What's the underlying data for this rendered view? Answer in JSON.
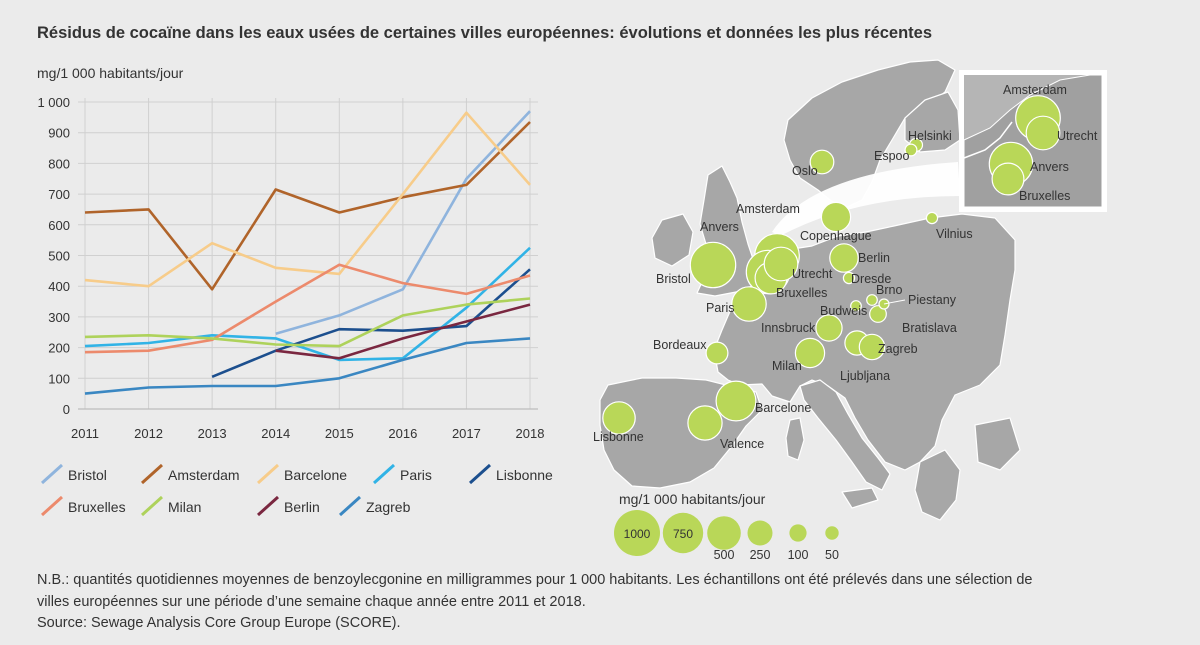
{
  "title": "Résidus de cocaïne dans les eaux usées de certaines villes européennes: évolutions et données les plus récentes",
  "chart_data": {
    "type": "line",
    "ylabel": "mg/1 000 habitants/jour",
    "xlabel": "",
    "ylim": [
      0,
      1000
    ],
    "yticks": [
      0,
      100,
      200,
      300,
      400,
      500,
      600,
      700,
      800,
      900,
      1000
    ],
    "ytick_labels": [
      "0",
      "100",
      "200",
      "300",
      "400",
      "500",
      "600",
      "700",
      "800",
      "900",
      "1 000"
    ],
    "categories": [
      "2011",
      "2012",
      "2013",
      "2014",
      "2015",
      "2016",
      "2017",
      "2018"
    ],
    "series": [
      {
        "name": "Bristol",
        "color": "#8fb4dd",
        "values": [
          null,
          null,
          null,
          245,
          305,
          390,
          750,
          970
        ]
      },
      {
        "name": "Amsterdam",
        "color": "#b0642a",
        "values": [
          640,
          650,
          390,
          715,
          640,
          690,
          730,
          935
        ]
      },
      {
        "name": "Barcelone",
        "color": "#f7cc8a",
        "values": [
          420,
          400,
          540,
          460,
          440,
          700,
          965,
          730
        ]
      },
      {
        "name": "Paris",
        "color": "#31b3e6",
        "values": [
          205,
          215,
          240,
          230,
          160,
          165,
          330,
          525
        ]
      },
      {
        "name": "Lisbonne",
        "color": "#1c4f8e",
        "values": [
          null,
          null,
          105,
          190,
          260,
          255,
          270,
          455
        ]
      },
      {
        "name": "Bruxelles",
        "color": "#ec8a6c",
        "values": [
          185,
          190,
          225,
          350,
          470,
          410,
          375,
          435
        ]
      },
      {
        "name": "Milan",
        "color": "#aed25b",
        "values": [
          235,
          240,
          230,
          210,
          205,
          305,
          340,
          360
        ]
      },
      {
        "name": "Berlin",
        "color": "#7a2740",
        "values": [
          null,
          null,
          null,
          190,
          165,
          230,
          285,
          340
        ]
      },
      {
        "name": "Zagreb",
        "color": "#3a87c2",
        "values": [
          50,
          70,
          75,
          75,
          100,
          160,
          215,
          230
        ]
      }
    ]
  },
  "map": {
    "bubble_color": "#b9d758",
    "cities": [
      {
        "name": "Amsterdam",
        "value": 935
      },
      {
        "name": "Anvers",
        "value": 880
      },
      {
        "name": "Bristol",
        "value": 970
      },
      {
        "name": "Barcelone",
        "value": 730
      },
      {
        "name": "Lisbonne",
        "value": 455
      },
      {
        "name": "Valence",
        "value": 520
      },
      {
        "name": "Paris",
        "value": 525
      },
      {
        "name": "Bruxelles",
        "value": 435
      },
      {
        "name": "Utrecht",
        "value": 500
      },
      {
        "name": "Copenhague",
        "value": 360
      },
      {
        "name": "Berlin",
        "value": 340
      },
      {
        "name": "Oslo",
        "value": 220
      },
      {
        "name": "Bordeaux",
        "value": 180
      },
      {
        "name": "Milan",
        "value": 360
      },
      {
        "name": "Innsbruck",
        "value": 280
      },
      {
        "name": "Zagreb",
        "value": 230
      },
      {
        "name": "Ljubljana",
        "value": 260
      },
      {
        "name": "Bratislava",
        "value": 90
      },
      {
        "name": "Helsinki",
        "value": 45
      },
      {
        "name": "Espoo",
        "value": 35
      },
      {
        "name": "Vilnius",
        "value": 30
      },
      {
        "name": "Dresde",
        "value": 30
      },
      {
        "name": "Brno",
        "value": 25
      },
      {
        "name": "Budweis",
        "value": 25
      },
      {
        "name": "Piestany",
        "value": 20
      }
    ],
    "inset_cities": [
      {
        "name": "Amsterdam",
        "value": 935
      },
      {
        "name": "Utrecht",
        "value": 500
      },
      {
        "name": "Anvers",
        "value": 880
      },
      {
        "name": "Bruxelles",
        "value": 435
      }
    ],
    "legend": {
      "title": "mg/1 000 habitants/jour",
      "items": [
        {
          "label": "1000",
          "value": 1000
        },
        {
          "label": "750",
          "value": 750
        },
        {
          "label": "500",
          "value": 500
        },
        {
          "label": "250",
          "value": 250
        },
        {
          "label": "100",
          "value": 100
        },
        {
          "label": "50",
          "value": 50
        }
      ]
    }
  },
  "notes": {
    "line1": "N.B.: quantités quotidiennes moyennes de benzoylecgonine en milligrammes pour 1 000 habitants. Les échantillons ont été prélevés dans une sélection de",
    "line2": "villes européennes sur une période d’une semaine chaque année entre 2011 et 2018.",
    "line3": "Source: Sewage Analysis Core Group Europe (SCORE)."
  }
}
